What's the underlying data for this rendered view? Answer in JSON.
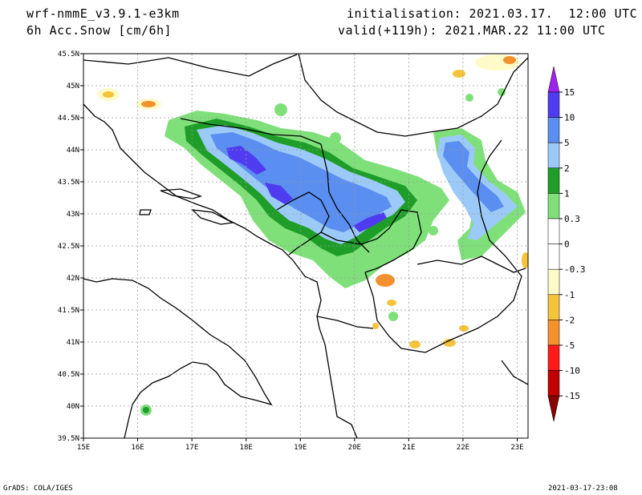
{
  "header": {
    "model": "wrf-nmmE_v3.9.1-e3km",
    "variable": "6h Acc.Snow [cm/6h]",
    "init": "initialisation: 2021.03.17.  12:00 UTC",
    "valid": "valid(+119h): 2021.MAR.22 11:00 UTC"
  },
  "map": {
    "lat_labels": [
      "45.5N",
      "45N",
      "44.5N",
      "44N",
      "43.5N",
      "43N",
      "42.5N",
      "42N",
      "41.5N",
      "41N",
      "40.5N",
      "40N",
      "39.5N"
    ],
    "lat_values": [
      45.5,
      45,
      44.5,
      44,
      43.5,
      43,
      42.5,
      42,
      41.5,
      41,
      40.5,
      40,
      39.5
    ],
    "lon_labels": [
      "15E",
      "16E",
      "17E",
      "18E",
      "19E",
      "20E",
      "21E",
      "22E",
      "23E"
    ],
    "lon_values": [
      15,
      16,
      17,
      18,
      19,
      20,
      21,
      22,
      23
    ],
    "grid": true
  },
  "colorbar": {
    "labels": [
      "15",
      "10",
      "5",
      "2",
      "1",
      "0.3",
      "0",
      "-0.3",
      "-1",
      "-2",
      "-5",
      "-10",
      "-15"
    ],
    "top_color": "#a020f0",
    "bottom_color": "#8b0000",
    "bins": [
      {
        "color": "#4f3cf0"
      },
      {
        "color": "#5a8ef0"
      },
      {
        "color": "#9ccaf8"
      },
      {
        "color": "#1e9e28"
      },
      {
        "color": "#7fe07a"
      },
      {
        "color": "#ffffff"
      },
      {
        "color": "#ffffff"
      },
      {
        "color": "#fffbc8"
      },
      {
        "color": "#f5c33c"
      },
      {
        "color": "#f5912d"
      },
      {
        "color": "#ff1a1a"
      },
      {
        "color": "#c00000"
      }
    ]
  },
  "footer": {
    "left": "GrADS: COLA/IGES",
    "right": "2021-03-17-23:08"
  }
}
